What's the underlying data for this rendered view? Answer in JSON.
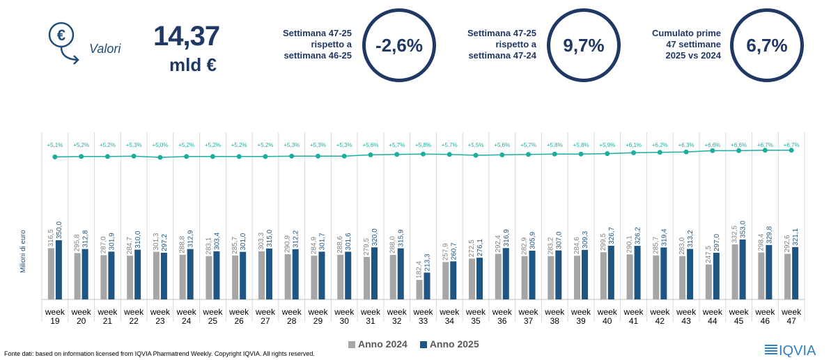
{
  "header": {
    "valori_label": "Valori",
    "big_value": "14,37",
    "big_unit": "mld €",
    "kpis": [
      {
        "label_lines": [
          "Settimana 47-25",
          "rispetto a",
          "settimana 46-25"
        ],
        "value": "-2,6%"
      },
      {
        "label_lines": [
          "Settimana 47-25",
          "rispetto a",
          "settimana 47-24"
        ],
        "value": "9,7%"
      },
      {
        "label_lines": [
          "Cumulato prime",
          "47 settimane",
          "2025 vs 2024"
        ],
        "value": "6,7%"
      }
    ]
  },
  "colors": {
    "series_2024": "#a6a6a6",
    "series_2025": "#1f5582",
    "line": "#1aae9f",
    "dark": "#1f3864"
  },
  "icons": [
    "euro-down-arrow-icon",
    "iqvia-logo"
  ],
  "chart_data": {
    "type": "bar",
    "ylabel": "Milioni di euro",
    "categories": [
      "week 19",
      "week 20",
      "week 21",
      "week 22",
      "week 23",
      "week 24",
      "week 25",
      "week 26",
      "week 27",
      "week 28",
      "week 29",
      "week 30",
      "week 31",
      "week 32",
      "week 33",
      "week 34",
      "week 35",
      "week 36",
      "week 37",
      "week 38",
      "week 39",
      "week 40",
      "week 41",
      "week 42",
      "week 43",
      "week 44",
      "week 45",
      "week 46",
      "week 47"
    ],
    "series": [
      {
        "name": "Anno 2024",
        "values": [
          316.5,
          295.8,
          287.0,
          284.7,
          301.3,
          288.8,
          283.1,
          285.7,
          303.3,
          290.9,
          284.9,
          288.6,
          279.5,
          288.0,
          182.4,
          257.9,
          272.5,
          292.4,
          282.9,
          283.2,
          284.6,
          299.5,
          290.1,
          285.7,
          283.0,
          247.5,
          332.5,
          298.4,
          292.6
        ],
        "labels": [
          "316,5",
          "295,8",
          "287,0",
          "284,7",
          "301,3",
          "288,8",
          "283,1",
          "285,7",
          "303,3",
          "290,9",
          "284,9",
          "288,6",
          "279,5",
          "288,0",
          "182,4",
          "257,9",
          "272,5",
          "292,4",
          "282,9",
          "283,2",
          "284,6",
          "299,5",
          "290,1",
          "285,7",
          "283,0",
          "247,5",
          "332,5",
          "298,4",
          "292,6"
        ]
      },
      {
        "name": "Anno 2025",
        "values": [
          350.0,
          312.8,
          301.9,
          310.0,
          297.2,
          312.9,
          303.4,
          301.0,
          315.0,
          312.2,
          301.7,
          301.6,
          320.0,
          315.9,
          213.3,
          260.7,
          276.1,
          316.9,
          305.9,
          307.0,
          309.3,
          326.7,
          326.2,
          319.4,
          313.2,
          297.0,
          353.0,
          329.8,
          321.1
        ],
        "labels": [
          "350,0",
          "312,8",
          "301,9",
          "310,0",
          "297,2",
          "312,9",
          "303,4",
          "301,0",
          "315,0",
          "312,2",
          "301,7",
          "301,6",
          "320,0",
          "315,9",
          "213,3",
          "260,7",
          "276,1",
          "316,9",
          "305,9",
          "307,0",
          "309,3",
          "326,7",
          "326,2",
          "319,4",
          "313,2",
          "297,0",
          "353,0",
          "329,8",
          "321,1"
        ]
      }
    ],
    "cumulative_growth": {
      "values": [
        5.1,
        5.2,
        5.2,
        5.3,
        5.0,
        5.2,
        5.2,
        5.2,
        5.2,
        5.3,
        5.3,
        5.3,
        5.6,
        5.7,
        5.8,
        5.7,
        5.5,
        5.6,
        5.7,
        5.8,
        5.8,
        5.9,
        6.1,
        6.2,
        6.3,
        6.6,
        6.6,
        6.7,
        6.7
      ],
      "labels": [
        "+5,1%",
        "+5,2%",
        "+5,2%",
        "+5,3%",
        "+5,0%",
        "+5,2%",
        "+5,2%",
        "+5,2%",
        "+5,2%",
        "+5,3%",
        "+5,3%",
        "+5,3%",
        "+5,6%",
        "+5,7%",
        "+5,8%",
        "+5,7%",
        "+5,5%",
        "+5,6%",
        "+5,7%",
        "+5,8%",
        "+5,8%",
        "+5,9%",
        "+6,1%",
        "+6,2%",
        "+6,3%",
        "+6,6%",
        "+6,6%",
        "+6,7%",
        "+6,7%"
      ]
    },
    "legend": {
      "position": "bottom",
      "items": [
        "Anno 2024",
        "Anno 2025"
      ]
    }
  },
  "footnote": "Fonte dati: based on information licensed from IQVIA Pharmatrend Weekly. Copyright IQVIA. All rights reserved.",
  "logo_text": "IQVIA"
}
